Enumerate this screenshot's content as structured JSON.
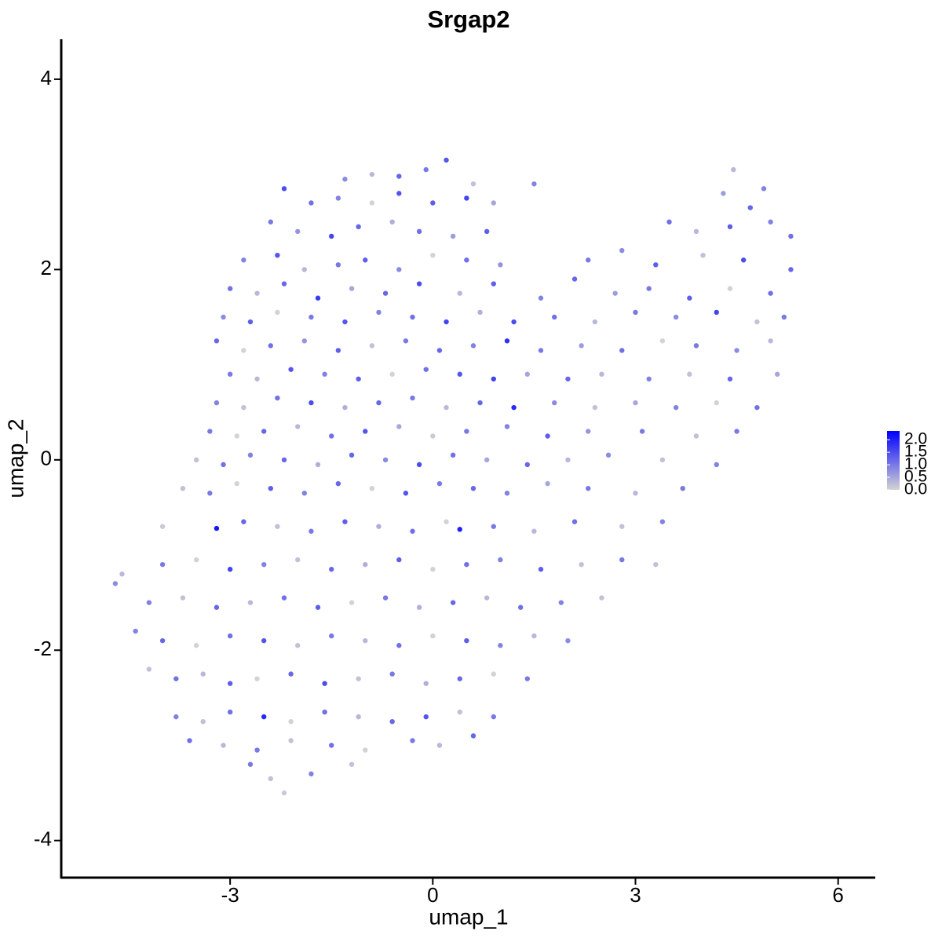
{
  "chart_data": {
    "type": "scatter",
    "title": "Srgap2",
    "xlabel": "umap_1",
    "ylabel": "umap_2",
    "xlim": [
      -5.5,
      6.55
    ],
    "ylim": [
      -4.39,
      4.42
    ],
    "xticks": [
      -3,
      0,
      3,
      6
    ],
    "yticks": [
      -4,
      -2,
      0,
      2,
      4
    ],
    "colors": [
      "#d3d3d3",
      "#0000ff"
    ],
    "colorlim": [
      0,
      2.35
    ],
    "colorticks": [
      {
        "value": 0,
        "label": "0.0"
      },
      0.5,
      {
        "value": 1,
        "label": "1.0"
      },
      1.5,
      {
        "value": 2,
        "label": "2.0"
      }
    ],
    "x": [
      -0.9,
      -0.5,
      -0.1,
      0.2,
      0.6,
      4.45,
      -1.3,
      -2.2,
      -1.8,
      -1.4,
      -0.9,
      -0.5,
      0.0,
      0.5,
      0.9,
      1.5,
      4.3,
      4.7,
      4.9,
      -2.4,
      -2.0,
      -1.5,
      -1.1,
      -0.6,
      -0.2,
      0.3,
      0.8,
      3.5,
      3.9,
      4.4,
      5.0,
      5.3,
      -2.8,
      -2.3,
      -1.9,
      -1.4,
      -1.0,
      -0.5,
      0.0,
      0.5,
      1.0,
      2.3,
      2.8,
      3.3,
      4.0,
      4.6,
      5.3,
      -3.0,
      -2.6,
      -2.2,
      -1.7,
      -1.2,
      -0.7,
      -0.2,
      0.4,
      0.9,
      1.6,
      2.1,
      2.7,
      3.2,
      3.8,
      4.4,
      5.0,
      -3.1,
      -2.7,
      -2.3,
      -1.8,
      -1.3,
      -0.8,
      -0.3,
      0.2,
      0.7,
      1.2,
      1.8,
      2.4,
      3.0,
      3.6,
      4.2,
      4.8,
      5.2,
      -3.2,
      -2.8,
      -2.4,
      -1.9,
      -1.4,
      -0.9,
      -0.4,
      0.1,
      0.6,
      1.1,
      1.6,
      2.2,
      2.8,
      3.4,
      3.9,
      4.5,
      5.0,
      -3.0,
      -2.6,
      -2.1,
      -1.6,
      -1.1,
      -0.6,
      -0.1,
      0.4,
      0.9,
      1.4,
      2.0,
      2.5,
      3.2,
      3.8,
      4.4,
      5.1,
      -3.2,
      -2.8,
      -2.3,
      -1.8,
      -1.3,
      -0.8,
      -0.3,
      0.2,
      0.7,
      1.2,
      1.8,
      2.4,
      3.0,
      3.6,
      4.2,
      4.8,
      -3.3,
      -2.9,
      -2.5,
      -2.0,
      -1.5,
      -1.0,
      -0.5,
      0.0,
      0.5,
      1.1,
      1.7,
      2.3,
      3.1,
      3.9,
      4.5,
      -3.5,
      -3.1,
      -2.7,
      -2.2,
      -1.7,
      -1.2,
      -0.7,
      -0.2,
      0.3,
      0.8,
      1.4,
      2.0,
      2.6,
      3.4,
      4.2,
      -3.7,
      -3.3,
      -2.9,
      -2.4,
      -1.9,
      -1.4,
      -0.9,
      -0.4,
      0.1,
      0.6,
      1.1,
      1.7,
      2.3,
      3.0,
      3.7,
      -4.0,
      -3.2,
      -2.8,
      -2.3,
      -1.8,
      -1.3,
      -0.8,
      -0.3,
      0.2,
      0.4,
      0.9,
      1.5,
      2.1,
      2.8,
      3.4,
      -4.6,
      -4.0,
      -3.5,
      -3.0,
      -2.5,
      -2.0,
      -1.5,
      -1.0,
      -0.5,
      0.0,
      0.5,
      1.0,
      1.6,
      2.2,
      2.8,
      3.3,
      -4.7,
      -4.2,
      -3.7,
      -3.2,
      -2.7,
      -2.2,
      -1.7,
      -1.2,
      -0.7,
      -0.2,
      0.3,
      0.8,
      1.3,
      1.9,
      2.5,
      -4.4,
      -4.0,
      -3.5,
      -3.0,
      -2.5,
      -2.0,
      -1.5,
      -1.0,
      -0.5,
      0.0,
      0.5,
      1.0,
      1.5,
      2.0,
      -4.2,
      -3.8,
      -3.4,
      -3.0,
      -2.6,
      -2.1,
      -1.6,
      -1.1,
      -0.6,
      -0.1,
      0.4,
      0.9,
      1.4,
      -3.8,
      -3.4,
      -3.0,
      -2.5,
      -2.1,
      -1.6,
      -1.1,
      -0.6,
      -0.1,
      0.4,
      0.9,
      -3.6,
      -3.1,
      -2.6,
      -2.1,
      -1.5,
      -1.0,
      -0.3,
      0.1,
      0.6,
      -2.7,
      -2.4,
      -2.2,
      -1.8,
      -1.2
    ],
    "y": [
      3.0,
      2.98,
      3.05,
      3.15,
      2.9,
      3.05,
      2.95,
      2.85,
      2.7,
      2.75,
      2.7,
      2.8,
      2.7,
      2.75,
      2.7,
      2.9,
      2.8,
      2.65,
      2.85,
      2.5,
      2.4,
      2.35,
      2.45,
      2.5,
      2.4,
      2.35,
      2.4,
      2.5,
      2.4,
      2.45,
      2.5,
      2.35,
      2.1,
      2.15,
      2.0,
      2.05,
      2.1,
      2.0,
      2.15,
      2.1,
      2.05,
      2.1,
      2.2,
      2.05,
      2.15,
      2.1,
      2.0,
      1.8,
      1.75,
      1.85,
      1.7,
      1.8,
      1.75,
      1.85,
      1.75,
      1.85,
      1.7,
      1.9,
      1.75,
      1.8,
      1.7,
      1.8,
      1.75,
      1.5,
      1.45,
      1.55,
      1.5,
      1.45,
      1.55,
      1.5,
      1.45,
      1.55,
      1.45,
      1.5,
      1.45,
      1.55,
      1.5,
      1.55,
      1.45,
      1.5,
      1.25,
      1.15,
      1.2,
      1.25,
      1.15,
      1.2,
      1.25,
      1.15,
      1.2,
      1.25,
      1.15,
      1.2,
      1.15,
      1.25,
      1.2,
      1.15,
      1.25,
      0.9,
      0.85,
      0.95,
      0.9,
      0.85,
      0.9,
      0.95,
      0.9,
      0.85,
      0.9,
      0.85,
      0.9,
      0.85,
      0.9,
      0.85,
      0.9,
      0.6,
      0.55,
      0.65,
      0.6,
      0.55,
      0.6,
      0.65,
      0.55,
      0.6,
      0.55,
      0.6,
      0.55,
      0.6,
      0.55,
      0.6,
      0.55,
      0.3,
      0.25,
      0.3,
      0.35,
      0.25,
      0.3,
      0.35,
      0.25,
      0.3,
      0.35,
      0.25,
      0.3,
      0.3,
      0.25,
      0.3,
      0.0,
      -0.05,
      0.05,
      0.0,
      -0.05,
      0.05,
      0.0,
      -0.05,
      0.05,
      0.0,
      -0.05,
      0.0,
      0.05,
      0.0,
      -0.05,
      -0.3,
      -0.35,
      -0.25,
      -0.3,
      -0.35,
      -0.25,
      -0.3,
      -0.35,
      -0.25,
      -0.3,
      -0.35,
      -0.25,
      -0.3,
      -0.35,
      -0.3,
      -0.7,
      -0.72,
      -0.65,
      -0.7,
      -0.75,
      -0.65,
      -0.7,
      -0.75,
      -0.65,
      -0.73,
      -0.7,
      -0.75,
      -0.65,
      -0.7,
      -0.65,
      -1.2,
      -1.1,
      -1.05,
      -1.15,
      -1.1,
      -1.05,
      -1.15,
      -1.1,
      -1.05,
      -1.15,
      -1.1,
      -1.05,
      -1.15,
      -1.1,
      -1.05,
      -1.1,
      -1.3,
      -1.5,
      -1.45,
      -1.55,
      -1.5,
      -1.45,
      -1.55,
      -1.5,
      -1.45,
      -1.55,
      -1.5,
      -1.45,
      -1.55,
      -1.5,
      -1.45,
      -1.8,
      -1.9,
      -1.95,
      -1.85,
      -1.9,
      -1.95,
      -1.85,
      -1.9,
      -1.95,
      -1.85,
      -1.9,
      -1.95,
      -1.85,
      -1.9,
      -2.2,
      -2.3,
      -2.25,
      -2.35,
      -2.3,
      -2.25,
      -2.35,
      -2.3,
      -2.25,
      -2.35,
      -2.3,
      -2.25,
      -2.3,
      -2.7,
      -2.75,
      -2.65,
      -2.7,
      -2.75,
      -2.65,
      -2.7,
      -2.75,
      -2.7,
      -2.65,
      -2.7,
      -2.95,
      -3.0,
      -3.05,
      -2.95,
      -3.0,
      -3.05,
      -2.95,
      -3.0,
      -2.9,
      -3.2,
      -3.35,
      -3.5,
      -3.3,
      -3.2
    ],
    "values": [
      0.3,
      1.2,
      1.0,
      1.4,
      0.2,
      0.3,
      0.8,
      1.5,
      1.1,
      0.9,
      0,
      1.4,
      1.3,
      1.6,
      0.5,
      0.9,
      0.6,
      1.2,
      0.9,
      1.0,
      0.7,
      1.6,
      1.2,
      0.4,
      1.1,
      0.6,
      1.3,
      1.1,
      0.3,
      1.3,
      0.9,
      1.1,
      0.9,
      1.4,
      0.3,
      1.0,
      1.3,
      0.8,
      0,
      1.1,
      0.7,
      1.0,
      0.8,
      1.3,
      0.2,
      1.5,
      1.2,
      1.1,
      0.3,
      1.2,
      1.7,
      0.5,
      1.2,
      1.5,
      0.3,
      1.3,
      0.9,
      1.2,
      0.6,
      1.0,
      1.3,
      0,
      1.1,
      0.8,
      1.3,
      0,
      1.0,
      1.4,
      0.9,
      1.1,
      1.6,
      0.4,
      1.5,
      1.1,
      0.3,
      1.0,
      0.8,
      1.6,
      0.2,
      1.0,
      1.2,
      0,
      1.1,
      0.7,
      1.3,
      0.2,
      1.0,
      1.2,
      0.9,
      1.8,
      1.0,
      0.6,
      1.1,
      0,
      1.0,
      0.8,
      0.3,
      1.0,
      0.3,
      1.4,
      0.9,
      1.3,
      0,
      1.1,
      1.4,
      1.6,
      0.5,
      1.2,
      0.3,
      0.9,
      0.2,
      1.2,
      0.5,
      0.9,
      0.2,
      1.1,
      1.5,
      0.4,
      1.2,
      1.0,
      0.3,
      1.2,
      1.9,
      0.8,
      0.2,
      0.5,
      0.9,
      0,
      1.1,
      1.0,
      0,
      1.2,
      0.3,
      1.1,
      1.4,
      0.5,
      0.1,
      1.0,
      0.9,
      1.3,
      0.7,
      1.0,
      0.2,
      1.0,
      0.2,
      1.1,
      0.9,
      1.2,
      0.4,
      1.2,
      0.8,
      1.5,
      1.1,
      0.5,
      1.2,
      0.3,
      0.8,
      0.2,
      0.9,
      0.2,
      1.0,
      0,
      1.3,
      0.9,
      1.2,
      0,
      1.4,
      1.0,
      1.2,
      0.9,
      0.5,
      1.0,
      0.3,
      1.0,
      0.1,
      2.1,
      1.2,
      0.2,
      1.0,
      1.3,
      0.4,
      1.1,
      0,
      2.0,
      1.0,
      0.3,
      1.1,
      0.2,
      0.9,
      0.3,
      1.0,
      0,
      1.6,
      0.9,
      0.2,
      1.2,
      0.4,
      1.3,
      0,
      1.1,
      0.9,
      1.3,
      0.2,
      1.0,
      0.2,
      0.8,
      0.9,
      0.2,
      1.2,
      0.3,
      1.1,
      1.3,
      0,
      1.0,
      0.4,
      1.2,
      0.3,
      1.1,
      0.9,
      0.2,
      0.9,
      1.2,
      0,
      1.1,
      1.4,
      0.2,
      1.0,
      0.3,
      1.1,
      0,
      1.3,
      0.9,
      0.3,
      0.8,
      0.2,
      1.1,
      0.3,
      1.3,
      0,
      1.2,
      1.5,
      0.2,
      1.0,
      0.4,
      1.2,
      0,
      1.0,
      0.9,
      0.2,
      1.1,
      1.9,
      0,
      1.1,
      0.3,
      1.2,
      1.4,
      0.2,
      1.0,
      1.1,
      0.3,
      1.0,
      0.2,
      1.1,
      0,
      1.0,
      0.3,
      1.2,
      1.0,
      0.2,
      0.1,
      0.9,
      0.2
    ]
  }
}
